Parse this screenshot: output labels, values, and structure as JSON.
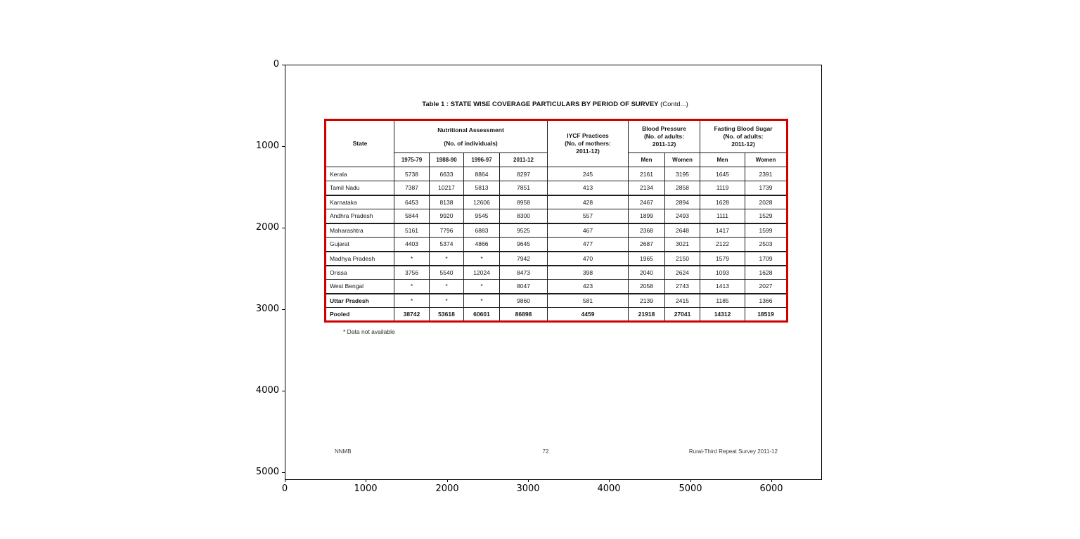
{
  "figure": {
    "x_ticks": [
      "0",
      "1000",
      "2000",
      "3000",
      "4000",
      "5000",
      "6000"
    ],
    "y_ticks": [
      "0",
      "1000",
      "2000",
      "3000",
      "4000",
      "5000"
    ]
  },
  "page": {
    "title_bold": "Table 1 : STATE WISE COVERAGE PARTICULARS BY PERIOD OF SURVEY",
    "title_suffix": " (Contd...)",
    "footnote": "* Data not available",
    "footer_left": "NNMB",
    "footer_center": "72",
    "footer_right": "Rural-Third Repeat Survey 2011-12",
    "border_color": "#d40000"
  },
  "table": {
    "header": {
      "state": "State",
      "nutritional": [
        "Nutritional Assessment",
        "(No. of individuals)"
      ],
      "years": [
        "1975-79",
        "1988-90",
        "1996-97",
        "2011-12"
      ],
      "iycf": [
        "IYCF Practices",
        "(No. of mothers:",
        "2011-12)"
      ],
      "bp": [
        "Blood Pressure",
        "(No. of adults:",
        "2011-12)"
      ],
      "fbs": [
        "Fasting  Blood Sugar",
        "(No. of adults:",
        "2011-12)"
      ],
      "men": "Men",
      "women": "Women"
    },
    "rows": [
      {
        "state": "Kerala",
        "values": [
          "5738",
          "6633",
          "8864",
          "8297",
          "245",
          "2161",
          "3195",
          "1645",
          "2391"
        ],
        "group_start": false,
        "name_bold": false,
        "bold": false
      },
      {
        "state": "Tamil Nadu",
        "values": [
          "7387",
          "10217",
          "5813",
          "7851",
          "413",
          "2134",
          "2858",
          "1119",
          "1739"
        ],
        "group_start": false,
        "name_bold": false,
        "bold": false
      },
      {
        "state": "Karnataka",
        "values": [
          "6453",
          "8138",
          "12606",
          "8958",
          "428",
          "2467",
          "2894",
          "1628",
          "2028"
        ],
        "group_start": true,
        "name_bold": false,
        "bold": false
      },
      {
        "state": "Andhra Pradesh",
        "values": [
          "5844",
          "9920",
          "9545",
          "8300",
          "557",
          "1899",
          "2493",
          "1111",
          "1529"
        ],
        "group_start": false,
        "name_bold": false,
        "bold": false
      },
      {
        "state": "Maharashtra",
        "values": [
          "5161",
          "7796",
          "6883",
          "9525",
          "467",
          "2368",
          "2648",
          "1417",
          "1599"
        ],
        "group_start": true,
        "name_bold": false,
        "bold": false
      },
      {
        "state": "Gujarat",
        "values": [
          "4403",
          "5374",
          "4866",
          "9645",
          "477",
          "2687",
          "3021",
          "2122",
          "2503"
        ],
        "group_start": false,
        "name_bold": false,
        "bold": false
      },
      {
        "state": "Madhya Pradesh",
        "values": [
          "*",
          "*",
          "*",
          "7942",
          "470",
          "1965",
          "2150",
          "1579",
          "1709"
        ],
        "group_start": true,
        "name_bold": false,
        "bold": false
      },
      {
        "state": "Orissa",
        "values": [
          "3756",
          "5540",
          "12024",
          "8473",
          "398",
          "2040",
          "2624",
          "1093",
          "1628"
        ],
        "group_start": true,
        "name_bold": false,
        "bold": false
      },
      {
        "state": "West Bengal",
        "values": [
          "*",
          "*",
          "*",
          "8047",
          "423",
          "2058",
          "2743",
          "1413",
          "2027"
        ],
        "group_start": false,
        "name_bold": false,
        "bold": false
      },
      {
        "state": "Uttar Pradesh",
        "values": [
          "*",
          "*",
          "*",
          "9860",
          "581",
          "2139",
          "2415",
          "1185",
          "1366"
        ],
        "group_start": true,
        "name_bold": true,
        "bold": false
      },
      {
        "state": "Pooled",
        "values": [
          "38742",
          "53618",
          "60601",
          "86898",
          "4459",
          "21918",
          "27041",
          "14312",
          "18519"
        ],
        "group_start": false,
        "name_bold": true,
        "bold": true
      }
    ]
  }
}
